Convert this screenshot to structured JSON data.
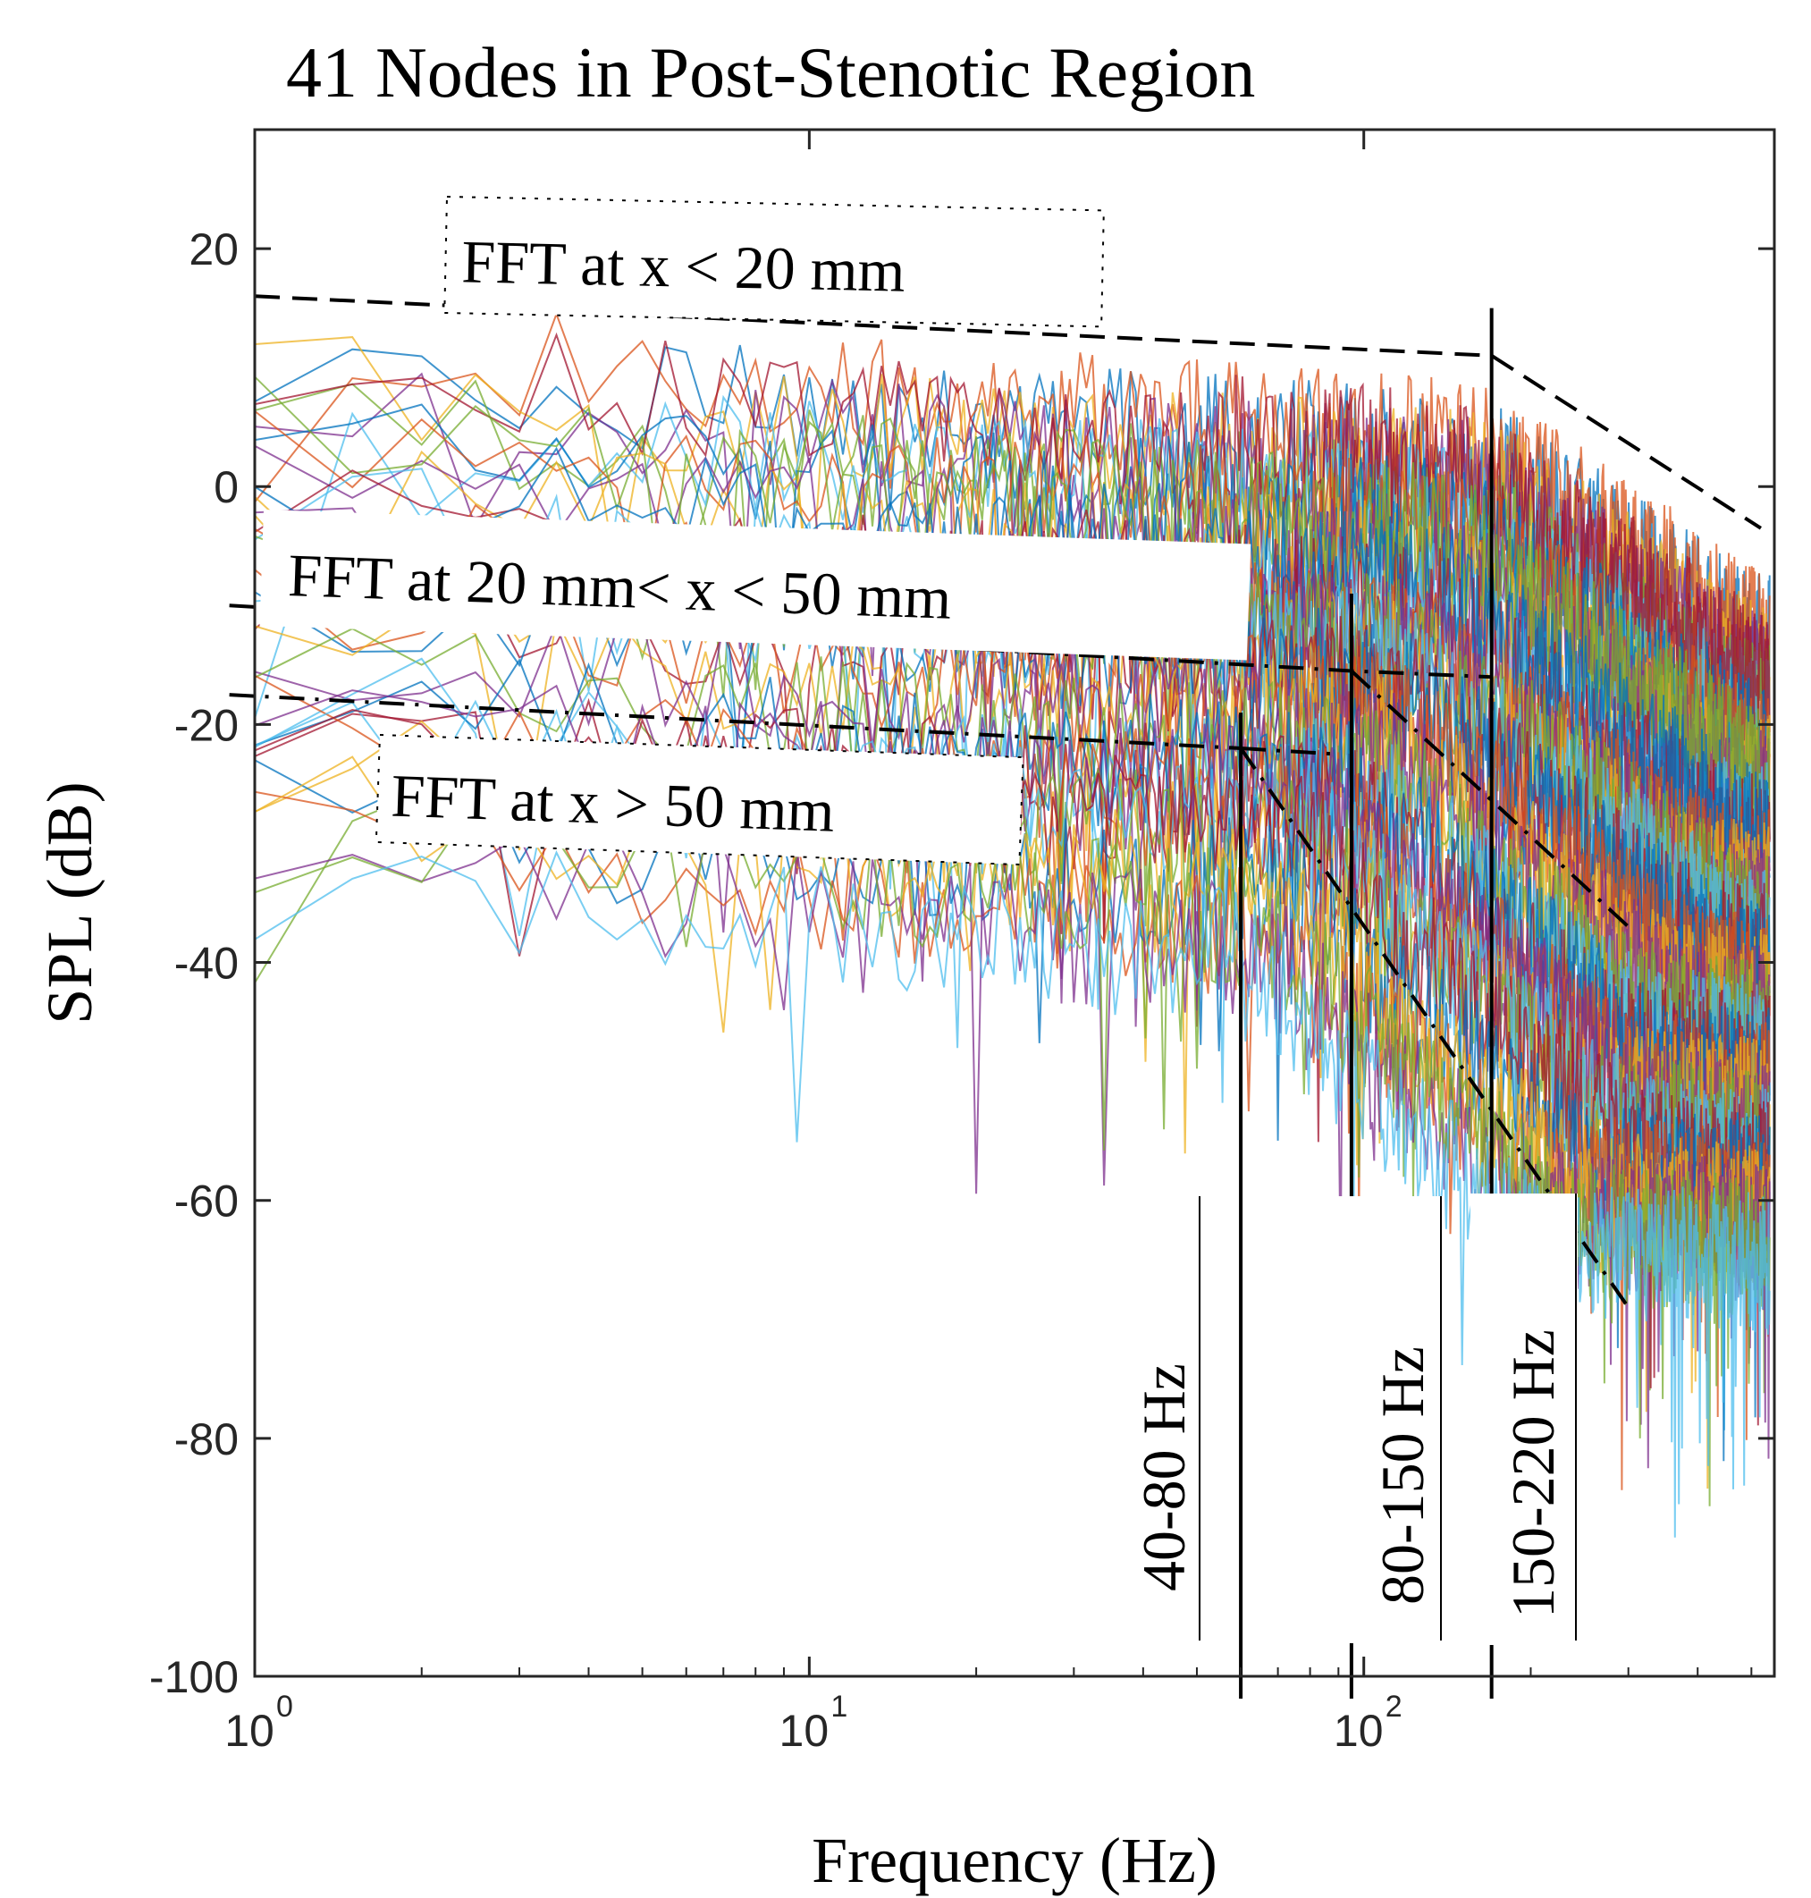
{
  "chart_data": {
    "type": "line",
    "title": "41 Nodes in Post-Stenotic Region",
    "xlabel": "Frequency (Hz)",
    "ylabel": "SPL (dB)",
    "xscale": "log",
    "xlim": [
      1,
      550
    ],
    "ylim": [
      -100,
      30
    ],
    "grid": false,
    "n_series": 41,
    "xticks": [
      {
        "value": 1,
        "base": "10",
        "exp": "0"
      },
      {
        "value": 10,
        "base": "10",
        "exp": "1"
      },
      {
        "value": 100,
        "base": "10",
        "exp": "2"
      }
    ],
    "yticks": [
      20,
      0,
      -20,
      -40,
      -60,
      -80,
      -100
    ],
    "series_colors": [
      "#0072BD",
      "#D95319",
      "#EDB120",
      "#7E2F8E",
      "#77AC30",
      "#4DBEEE",
      "#A2142F"
    ],
    "trend_lines": [
      {
        "name": "FFT at x < 20 mm",
        "style": "dashed",
        "points": [
          [
            1,
            16
          ],
          [
            170,
            11
          ],
          [
            520,
            -3.5
          ]
        ]
      },
      {
        "name": "FFT at 20 mm< x < 50 mm",
        "style": "dashdot",
        "points": [
          [
            0.9,
            -10
          ],
          [
            95,
            -15.5
          ],
          [
            170,
            -16
          ]
        ],
        "rolloff": [
          [
            95,
            -15.5
          ],
          [
            300,
            -37
          ]
        ]
      },
      {
        "name": "FFT at x > 50 mm",
        "style": "dashdot",
        "points": [
          [
            0.9,
            -17.5
          ],
          [
            60,
            -22
          ]
        ],
        "rolloff": [
          [
            60,
            -22
          ],
          [
            300,
            -69
          ]
        ],
        "extension": [
          [
            60,
            -22
          ],
          [
            90,
            -22.5
          ]
        ]
      }
    ],
    "band_markers": [
      {
        "label": "40-80 Hz",
        "freq": 60,
        "top": -19
      },
      {
        "label": "80-150 Hz",
        "freq": 95,
        "top": -9
      },
      {
        "label": "150-220 Hz",
        "freq": 170,
        "top": 15
      }
    ],
    "annotations": [
      {
        "text": "FFT at x < 20 mm"
      },
      {
        "text": "FFT at 20 mm< x < 50 mm"
      },
      {
        "text": "FFT at x > 50 mm"
      }
    ]
  }
}
